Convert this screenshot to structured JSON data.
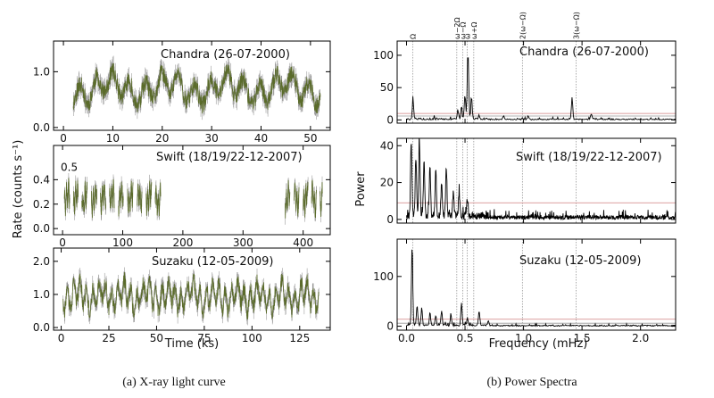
{
  "colors": {
    "lightcurve": "#5a6b2a",
    "lightcurve_err": "#8a8a8a",
    "spectrum": "#000000",
    "sig_red": "#d08080",
    "sig_gray": "#999999",
    "marker": "#777777"
  },
  "captions": {
    "left": "(a)  X-ray light curve",
    "right": "(b)  Power Spectra"
  },
  "chart_data": [
    {
      "type": "line",
      "id": "lc-chandra",
      "panel_label": "Chandra (26-07-2000)",
      "xlim": [
        -2,
        54
      ],
      "ylim": [
        -0.05,
        1.55
      ],
      "xticks": [
        0,
        10,
        20,
        30,
        40,
        50
      ],
      "yticks": [
        0.0,
        1.0
      ],
      "ytick_labels": [
        "0.0",
        "1.0"
      ],
      "segments": [
        [
          2,
          52
        ]
      ],
      "mean": 0.7,
      "amp": 0.35,
      "n": 900,
      "seed": 11
    },
    {
      "type": "line",
      "id": "lc-swift",
      "panel_label": "Swift (18/19/22-12-2007)",
      "ylabel": "Rate (counts s⁻¹)",
      "xlim": [
        -15,
        445
      ],
      "ylim": [
        -0.05,
        0.68
      ],
      "xticks": [
        0,
        100,
        200,
        300,
        400
      ],
      "yticks": [
        0.0,
        0.2,
        0.4
      ],
      "ytick_labels": [
        "0.0",
        "0.2",
        "0.4"
      ],
      "top_tick_label": "0.5",
      "segments": [
        [
          3,
          12
        ],
        [
          18,
          26
        ],
        [
          32,
          41
        ],
        [
          48,
          57
        ],
        [
          63,
          72
        ],
        [
          78,
          86
        ],
        [
          93,
          101
        ],
        [
          108,
          117
        ],
        [
          124,
          132
        ],
        [
          139,
          148
        ],
        [
          154,
          163
        ],
        [
          370,
          378
        ],
        [
          385,
          393
        ],
        [
          400,
          408
        ],
        [
          414,
          422
        ],
        [
          428,
          432
        ]
      ],
      "mean": 0.25,
      "amp": 0.13,
      "n": 700,
      "seed": 23
    },
    {
      "type": "line",
      "id": "lc-suzaku",
      "panel_label": "Suzaku (12-05-2009)",
      "xlabel": "Time (ks)",
      "xlim": [
        -4,
        141
      ],
      "ylim": [
        -0.08,
        2.4
      ],
      "xticks": [
        0,
        25,
        50,
        75,
        100,
        125
      ],
      "yticks": [
        0.0,
        1.0,
        2.0
      ],
      "ytick_labels": [
        "0.0",
        "1.0",
        "2.0"
      ],
      "segments": [
        [
          1,
          135
        ]
      ],
      "mean": 0.95,
      "amp": 0.55,
      "n": 900,
      "seed": 37
    },
    {
      "type": "line",
      "id": "ps-chandra",
      "panel_label": "Chandra (26-07-2000)",
      "xlim": [
        -0.08,
        2.3
      ],
      "ylim": [
        -5,
        122
      ],
      "xticks": [
        0.0,
        0.5,
        1.0,
        1.5,
        2.0
      ],
      "yticks": [
        0,
        50,
        100
      ],
      "sig_levels": [
        6,
        10
      ],
      "peaks": [
        [
          0.055,
          30
        ],
        [
          0.44,
          13
        ],
        [
          0.47,
          20
        ],
        [
          0.5,
          38
        ],
        [
          0.525,
          110
        ],
        [
          0.555,
          35
        ],
        [
          0.62,
          6
        ],
        [
          0.83,
          6
        ],
        [
          1.04,
          5
        ],
        [
          1.415,
          35
        ],
        [
          1.58,
          8
        ]
      ],
      "noise": 2.5,
      "n": 380,
      "seed": 5
    },
    {
      "type": "line",
      "id": "ps-swift",
      "panel_label": "Swift (18/19/22-12-2007)",
      "ylabel": "Power",
      "xlim": [
        -0.08,
        2.3
      ],
      "ylim": [
        -2,
        44
      ],
      "xticks": [
        0.0,
        0.5,
        1.0,
        1.5,
        2.0
      ],
      "yticks": [
        0,
        20,
        40
      ],
      "sig_levels": [
        9
      ],
      "peaks": [
        [
          0.04,
          41
        ],
        [
          0.08,
          32
        ],
        [
          0.11,
          41
        ],
        [
          0.15,
          30
        ],
        [
          0.2,
          26
        ],
        [
          0.25,
          24
        ],
        [
          0.3,
          18
        ],
        [
          0.34,
          27
        ],
        [
          0.4,
          13
        ],
        [
          0.45,
          12
        ],
        [
          0.52,
          9
        ]
      ],
      "noise": 3.2,
      "n": 900,
      "seed": 61
    },
    {
      "type": "line",
      "id": "ps-suzaku",
      "panel_label": "Suzaku (12-05-2009)",
      "xlabel": "Frequency (mHz)",
      "xlim": [
        -0.08,
        2.3
      ],
      "ylim": [
        -8,
        175
      ],
      "xticks": [
        0.0,
        0.5,
        1.0,
        1.5,
        2.0
      ],
      "xtick_labels": [
        "0.0",
        "0.5",
        "1.0",
        "1.5",
        "2.0"
      ],
      "yticks": [
        0,
        100
      ],
      "sig_levels": [
        6,
        14
      ],
      "peaks": [
        [
          0.048,
          160
        ],
        [
          0.09,
          40
        ],
        [
          0.13,
          35
        ],
        [
          0.2,
          25
        ],
        [
          0.25,
          20
        ],
        [
          0.3,
          30
        ],
        [
          0.38,
          22
        ],
        [
          0.47,
          45
        ],
        [
          0.52,
          15
        ],
        [
          0.62,
          28
        ],
        [
          0.7,
          10
        ]
      ],
      "noise": 3,
      "n": 500,
      "seed": 77
    }
  ],
  "frequency_markers": [
    {
      "x": 0.055,
      "label": "Ω"
    },
    {
      "x": 0.43,
      "label": "ω−2Ω"
    },
    {
      "x": 0.48,
      "label": "ω−Ω"
    },
    {
      "x": 0.52,
      "label": "ω"
    },
    {
      "x": 0.575,
      "label": "ω+Ω"
    },
    {
      "x": 0.99,
      "label": "2(ω−Ω)"
    },
    {
      "x": 1.45,
      "label": "3(ω−Ω)"
    }
  ]
}
